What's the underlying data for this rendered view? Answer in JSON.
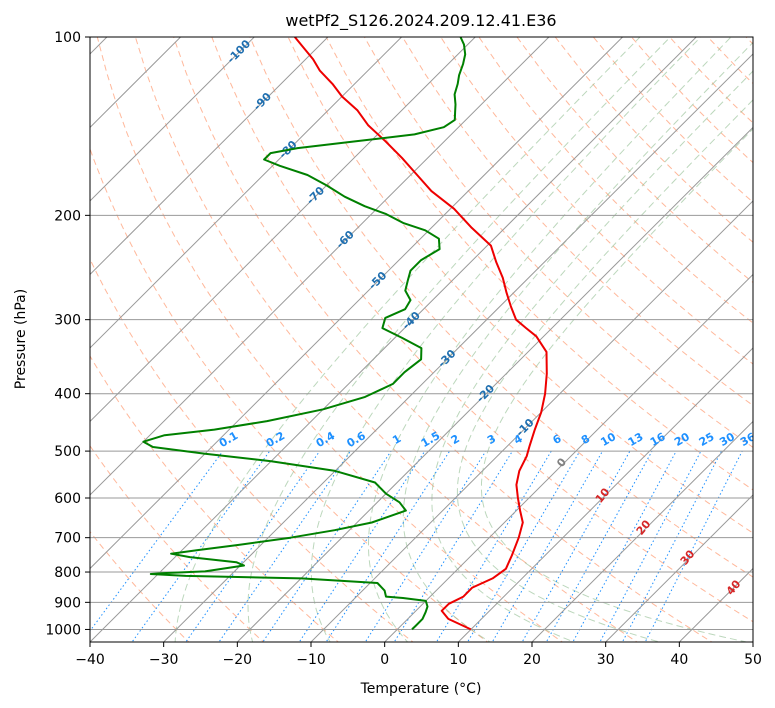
{
  "chart_data": {
    "type": "line",
    "title": "wetPf2_S126.2024.209.12.41.E36",
    "xlabel": "Temperature (°C)",
    "ylabel": "Pressure (hPa)",
    "xlim": [
      -40,
      50
    ],
    "ylim": [
      1050,
      100
    ],
    "y_scale": "log",
    "x_ticks": [
      -40,
      -30,
      -20,
      -10,
      0,
      10,
      20,
      30,
      40,
      50
    ],
    "y_ticks": [
      100,
      200,
      300,
      400,
      500,
      600,
      700,
      800,
      900,
      1000
    ],
    "grid": true,
    "colors": {
      "temperature": "#ee0000",
      "dewpoint": "#008000",
      "isotherm": "#999999",
      "dry_adiabat": "#ffa07a",
      "moist_adiabat": "#8fbc8f",
      "mixing_ratio": "#1e90ff",
      "isotherm_label": "#1f6fb0",
      "mixing_label": "#1e90ff",
      "moist_label": "#d62728",
      "zero_label": "#808080"
    },
    "series": [
      {
        "key": "temperature",
        "points": [
          [
            10.0,
            1000
          ],
          [
            5.5,
            960
          ],
          [
            3.5,
            930
          ],
          [
            3.5,
            905
          ],
          [
            4.5,
            880
          ],
          [
            4.5,
            850
          ],
          [
            6.0,
            820
          ],
          [
            6.5,
            790
          ],
          [
            5.5,
            750
          ],
          [
            4.0,
            700
          ],
          [
            2.5,
            660
          ],
          [
            0.5,
            630
          ],
          [
            -1.5,
            600
          ],
          [
            -3.5,
            570
          ],
          [
            -5.0,
            540
          ],
          [
            -6.0,
            510
          ],
          [
            -7.0,
            490
          ],
          [
            -8.5,
            460
          ],
          [
            -10.0,
            430
          ],
          [
            -12.0,
            400
          ],
          [
            -14.5,
            370
          ],
          [
            -17.5,
            340
          ],
          [
            -21.0,
            320
          ],
          [
            -23.5,
            310
          ],
          [
            -26.0,
            300
          ],
          [
            -28.5,
            285
          ],
          [
            -31.0,
            270
          ],
          [
            -33.5,
            255
          ],
          [
            -36.5,
            240
          ],
          [
            -39.5,
            225
          ],
          [
            -44.5,
            210
          ],
          [
            -49.5,
            195
          ],
          [
            -55.0,
            182
          ],
          [
            -59.5,
            170
          ],
          [
            -63.5,
            160
          ],
          [
            -68.0,
            150
          ],
          [
            -72.5,
            141
          ],
          [
            -76.0,
            133
          ],
          [
            -80.0,
            126
          ],
          [
            -83.0,
            120
          ],
          [
            -86.5,
            114
          ],
          [
            -89.0,
            109
          ],
          [
            -92.0,
            104
          ],
          [
            -94.5,
            100
          ]
        ]
      },
      {
        "key": "dewpoint",
        "points": [
          [
            2.0,
            1000
          ],
          [
            2.0,
            985
          ],
          [
            2.0,
            960
          ],
          [
            1.5,
            935
          ],
          [
            1.0,
            915
          ],
          [
            0.0,
            895
          ],
          [
            -3.5,
            885
          ],
          [
            -6.0,
            880
          ],
          [
            -7.0,
            860
          ],
          [
            -9.0,
            835
          ],
          [
            -20.0,
            820
          ],
          [
            -36.0,
            812
          ],
          [
            -41.0,
            806
          ],
          [
            -39.0,
            803
          ],
          [
            -34.0,
            798
          ],
          [
            -29.5,
            780
          ],
          [
            -31.0,
            770
          ],
          [
            -38.0,
            755
          ],
          [
            -41.0,
            745
          ],
          [
            -38.0,
            735
          ],
          [
            -33.0,
            720
          ],
          [
            -27.0,
            700
          ],
          [
            -22.0,
            680
          ],
          [
            -18.0,
            660
          ],
          [
            -15.0,
            630
          ],
          [
            -17.0,
            610
          ],
          [
            -20.0,
            590
          ],
          [
            -23.0,
            565
          ],
          [
            -30.0,
            540
          ],
          [
            -40.0,
            520
          ],
          [
            -50.0,
            505
          ],
          [
            -58.0,
            492
          ],
          [
            -60.0,
            482
          ],
          [
            -58.0,
            470
          ],
          [
            -52.0,
            460
          ],
          [
            -46.0,
            445
          ],
          [
            -40.0,
            425
          ],
          [
            -36.0,
            405
          ],
          [
            -34.0,
            385
          ],
          [
            -34.0,
            368
          ],
          [
            -33.5,
            350
          ],
          [
            -35.0,
            335
          ],
          [
            -39.0,
            322
          ],
          [
            -43.0,
            310
          ],
          [
            -44.0,
            298
          ],
          [
            -42.5,
            288
          ],
          [
            -43.0,
            278
          ],
          [
            -45.0,
            268
          ],
          [
            -46.0,
            258
          ],
          [
            -47.0,
            248
          ],
          [
            -47.0,
            238
          ],
          [
            -46.0,
            228
          ],
          [
            -47.5,
            219
          ],
          [
            -50.5,
            212
          ],
          [
            -54.5,
            206
          ],
          [
            -58.0,
            199
          ],
          [
            -62.0,
            193
          ],
          [
            -66.0,
            186
          ],
          [
            -70.0,
            178
          ],
          [
            -74.0,
            171
          ],
          [
            -79.0,
            165
          ],
          [
            -82.0,
            161
          ],
          [
            -82.0,
            157
          ],
          [
            -79.0,
            154
          ],
          [
            -72.0,
            150
          ],
          [
            -65.0,
            146
          ],
          [
            -62.0,
            142
          ],
          [
            -61.5,
            138
          ],
          [
            -62.5,
            134
          ],
          [
            -63.5,
            130
          ],
          [
            -65.0,
            125
          ],
          [
            -66.0,
            120
          ],
          [
            -67.0,
            116
          ],
          [
            -68.0,
            111
          ],
          [
            -69.0,
            107
          ],
          [
            -70.5,
            103
          ],
          [
            -72.0,
            100
          ]
        ]
      }
    ],
    "isotherm_labels": [
      "-100",
      "-90",
      "-80",
      "-70",
      "-60",
      "-50",
      "-40",
      "-30",
      "-20",
      "-10"
    ],
    "mixing_ratio_labels": [
      "0.1",
      "0.2",
      "0.4",
      "0.6",
      "1",
      "1.5",
      "2",
      "3",
      "4",
      "6",
      "8",
      "10",
      "13",
      "16",
      "20",
      "25",
      "30",
      "36"
    ],
    "moist_adiabat_labels": [
      "0",
      "10",
      "20",
      "30",
      "40"
    ]
  }
}
